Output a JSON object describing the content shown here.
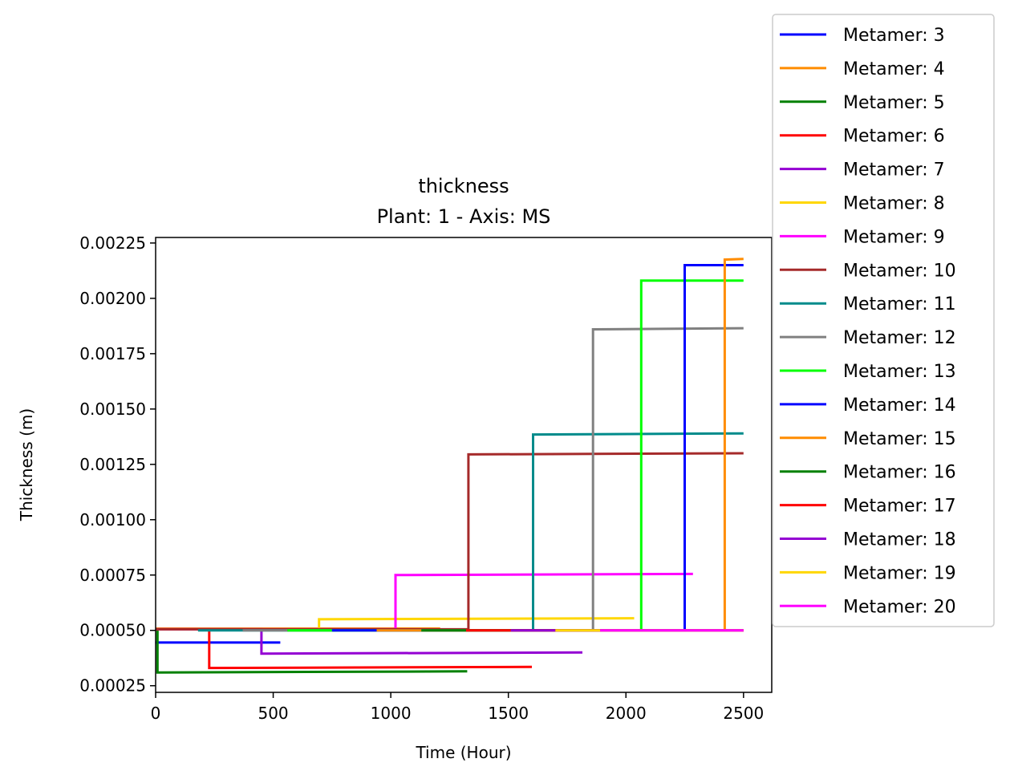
{
  "chart_data": {
    "type": "line",
    "title": "thickness",
    "subtitle": "Plant: 1 - Axis: MS",
    "xlabel": "Time (Hour)",
    "ylabel": "Thickness (m)",
    "xlim": [
      0,
      2620
    ],
    "ylim": [
      0.00022,
      0.002275
    ],
    "xticks": [
      0,
      500,
      1000,
      1500,
      2000,
      2500
    ],
    "yticks": [
      0.00025,
      0.0005,
      0.00075,
      0.001,
      0.00125,
      0.0015,
      0.00175,
      0.002,
      0.00225
    ],
    "xtick_labels": [
      "0",
      "500",
      "1000",
      "1500",
      "2000",
      "2500"
    ],
    "ytick_labels": [
      "0.00025",
      "0.00050",
      "0.00075",
      "0.00100",
      "0.00125",
      "0.00150",
      "0.00175",
      "0.00200",
      "0.00225"
    ],
    "grid": false,
    "legend_position": "outside-top-right",
    "series": [
      {
        "name": "Metamer: 3",
        "color": "#0000ff",
        "x": [
          0,
          530
        ],
        "y": [
          0.000445,
          0.000445
        ]
      },
      {
        "name": "Metamer: 4",
        "color": "#ff8c00",
        "x": [
          0,
          1210
        ],
        "y": [
          0.000508,
          0.000508
        ]
      },
      {
        "name": "Metamer: 5",
        "color": "#008000",
        "x": [
          0,
          8,
          8,
          1325
        ],
        "y": [
          0.000505,
          0.000505,
          0.00031,
          0.000315
        ]
      },
      {
        "name": "Metamer: 6",
        "color": "#ff0000",
        "x": [
          0,
          228,
          228,
          1600
        ],
        "y": [
          0.000505,
          0.000505,
          0.00033,
          0.000335
        ]
      },
      {
        "name": "Metamer: 7",
        "color": "#9400d3",
        "x": [
          0,
          450,
          450,
          1815
        ],
        "y": [
          0.000505,
          0.000505,
          0.000395,
          0.0004
        ]
      },
      {
        "name": "Metamer: 8",
        "color": "#ffd700",
        "x": [
          0,
          695,
          695,
          2035
        ],
        "y": [
          0.000505,
          0.000505,
          0.00055,
          0.000555
        ]
      },
      {
        "name": "Metamer: 9",
        "color": "#ff00ff",
        "x": [
          0,
          1020,
          1020,
          2285
        ],
        "y": [
          0.000505,
          0.000505,
          0.00075,
          0.000755
        ]
      },
      {
        "name": "Metamer: 10",
        "color": "#a52a2a",
        "x": [
          0,
          1330,
          1330,
          2500
        ],
        "y": [
          0.000505,
          0.000505,
          0.001295,
          0.0013
        ]
      },
      {
        "name": "Metamer: 11",
        "color": "#008b8b",
        "x": [
          180,
          1605,
          1605,
          2500
        ],
        "y": [
          0.0005,
          0.0005,
          0.001385,
          0.00139
        ]
      },
      {
        "name": "Metamer: 12",
        "color": "#808080",
        "x": [
          370,
          1860,
          1860,
          2500
        ],
        "y": [
          0.0005,
          0.0005,
          0.00186,
          0.001865
        ]
      },
      {
        "name": "Metamer: 13",
        "color": "#00ff00",
        "x": [
          560,
          2065,
          2065,
          2500
        ],
        "y": [
          0.0005,
          0.0005,
          0.00208,
          0.00208
        ]
      },
      {
        "name": "Metamer: 14",
        "color": "#0000ff",
        "x": [
          750,
          2250,
          2250,
          2500
        ],
        "y": [
          0.0005,
          0.0005,
          0.00215,
          0.00215
        ]
      },
      {
        "name": "Metamer: 15",
        "color": "#ff8c00",
        "x": [
          940,
          2420,
          2420,
          2500
        ],
        "y": [
          0.0005,
          0.0005,
          0.002175,
          0.002178
        ]
      },
      {
        "name": "Metamer: 16",
        "color": "#008000",
        "x": [
          1130,
          2500
        ],
        "y": [
          0.0005,
          0.0005
        ]
      },
      {
        "name": "Metamer: 17",
        "color": "#ff0000",
        "x": [
          1320,
          2500
        ],
        "y": [
          0.0005,
          0.0005
        ]
      },
      {
        "name": "Metamer: 18",
        "color": "#9400d3",
        "x": [
          1510,
          2500
        ],
        "y": [
          0.0005,
          0.0005
        ]
      },
      {
        "name": "Metamer: 19",
        "color": "#ffd700",
        "x": [
          1700,
          2500
        ],
        "y": [
          0.0005,
          0.0005
        ]
      },
      {
        "name": "Metamer: 20",
        "color": "#ff00ff",
        "x": [
          1890,
          2500
        ],
        "y": [
          0.0005,
          0.0005
        ]
      }
    ]
  }
}
